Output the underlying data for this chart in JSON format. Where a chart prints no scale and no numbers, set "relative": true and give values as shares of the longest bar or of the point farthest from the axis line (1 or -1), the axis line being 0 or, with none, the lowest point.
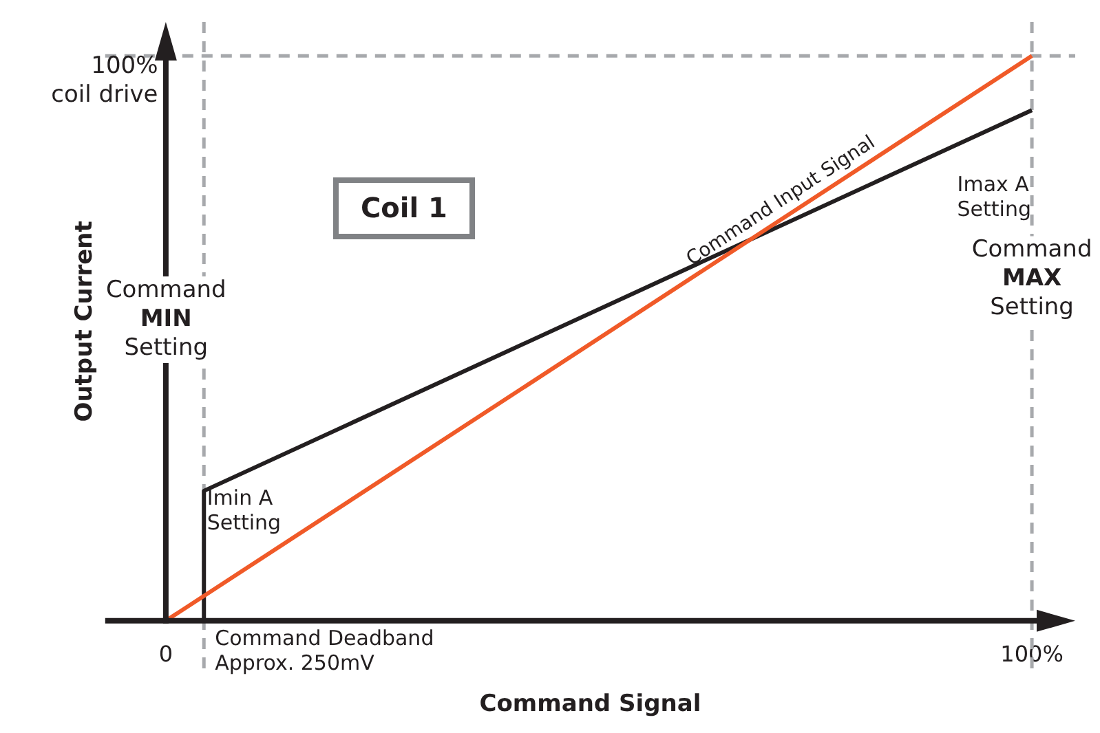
{
  "chart_data": {
    "type": "line",
    "xlabel": "Command Signal",
    "ylabel": "Output Current",
    "relative": true,
    "xlim": [
      -7,
      105
    ],
    "xticks": [
      {
        "value": 0,
        "label": "0"
      },
      {
        "value": 100,
        "label": "100%"
      }
    ],
    "series": [
      {
        "name": "Command Input Signal",
        "color": "#f05a28",
        "x": [
          0,
          100
        ],
        "values": [
          0,
          1
        ]
      },
      {
        "color": "#231f20",
        "x": [
          4.4,
          4.4,
          100
        ],
        "values": [
          0,
          0.23,
          0.904
        ]
      }
    ],
    "ref_lines": [
      {
        "axis": "y",
        "value": 1,
        "color": "#a7a9ac",
        "line_style": "dashed"
      },
      {
        "axis": "x",
        "value": 4.4,
        "label": "Command Deadband\nApprox. 250mV",
        "color": "#a7a9ac",
        "line_style": "dashed"
      },
      {
        "axis": "x",
        "value": 100,
        "label": "Command\nMAX\nSetting",
        "color": "#a7a9ac",
        "line_style": "dashed"
      }
    ],
    "annotations": [
      "100%\ncoil drive",
      "Coil 1",
      "Command\nMIN\nSetting",
      "Imin A\nSetting",
      "Imax A\nSetting"
    ],
    "grid": false,
    "legend": false,
    "marker": "none",
    "line_style": "solid"
  }
}
